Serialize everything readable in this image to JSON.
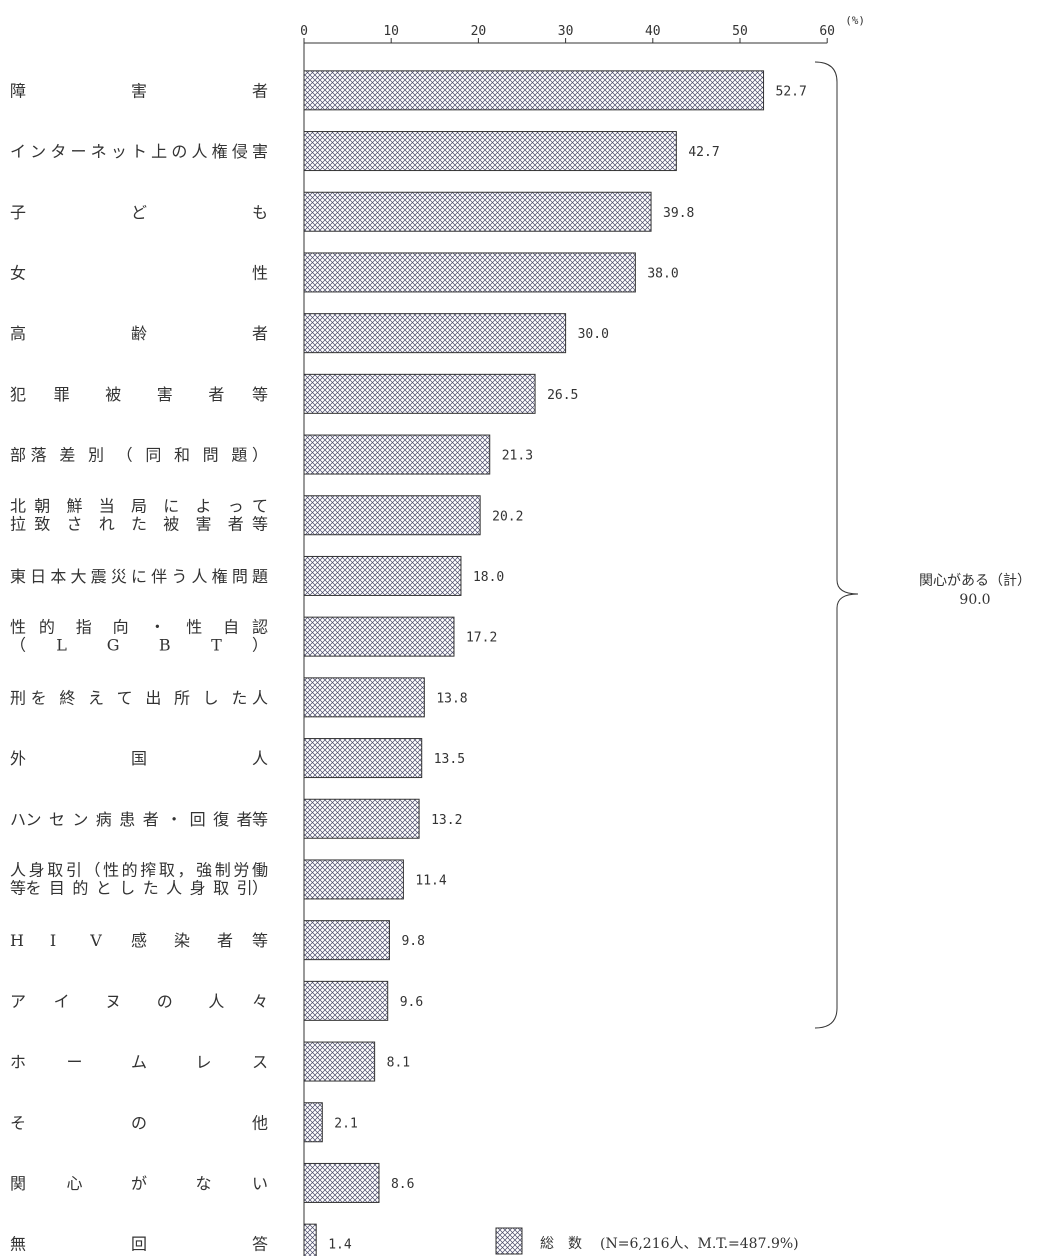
{
  "chart_data": {
    "type": "bar",
    "orientation": "horizontal",
    "unit": "(%)",
    "xlim": [
      0,
      60
    ],
    "xticks": [
      "0",
      "10",
      "20",
      "30",
      "40",
      "50",
      "60"
    ],
    "categories": [
      [
        "障",
        "害",
        "者"
      ],
      [
        "インターネット上の人権侵害"
      ],
      [
        "子",
        "ど",
        "も"
      ],
      [
        "女",
        "性"
      ],
      [
        "高",
        "齢",
        "者"
      ],
      [
        "犯",
        "罪",
        "被",
        "害",
        "者",
        "等"
      ],
      [
        "部",
        "落",
        "差",
        "別",
        "（",
        "同",
        "和",
        "問",
        "題",
        "）"
      ],
      [
        [
          "北",
          "朝",
          "鮮",
          "当",
          "局",
          "に",
          "よ",
          "っ",
          "て"
        ],
        [
          "拉",
          "致",
          "さ",
          "れ",
          "た",
          "被",
          "害",
          "者",
          "等"
        ]
      ],
      [
        "東日本大震災に伴う人権問題"
      ],
      [
        [
          "性",
          "的",
          "指",
          "向",
          "・",
          "性",
          "自",
          "認"
        ],
        [
          "（",
          "L",
          "G",
          "B",
          "T",
          "）"
        ]
      ],
      [
        "刑",
        "を",
        "終",
        "え",
        "て",
        "出",
        "所",
        "し",
        "た",
        "人"
      ],
      [
        "外",
        "国",
        "人"
      ],
      [
        "ハ",
        "ン",
        "セ",
        "ン",
        "病",
        "患",
        "者",
        "・",
        "回",
        "復",
        "者",
        "等"
      ],
      [
        [
          "人身取引（性的搾取，強制労働"
        ],
        [
          "等",
          "を",
          "目",
          "的",
          "と",
          "し",
          "た",
          "人",
          "身",
          "取",
          "引",
          "）"
        ]
      ],
      [
        "H",
        "I",
        "V",
        "感",
        "染",
        "者",
        "等"
      ],
      [
        "ア",
        "イ",
        "ヌ",
        "の",
        "人",
        "々"
      ],
      [
        "ホ",
        "ー",
        "ム",
        "レ",
        "ス"
      ],
      [
        "そ",
        "の",
        "他"
      ],
      [
        "関",
        "心",
        "が",
        "な",
        "い"
      ],
      [
        "無",
        "回",
        "答"
      ]
    ],
    "values": [
      52.7,
      42.7,
      39.8,
      38.0,
      30.0,
      26.5,
      21.3,
      20.2,
      18.0,
      17.2,
      13.8,
      13.5,
      13.2,
      11.4,
      9.8,
      9.6,
      8.1,
      2.1,
      8.6,
      1.4
    ],
    "value_labels": [
      "52.7",
      "42.7",
      "39.8",
      "38.0",
      "30.0",
      "26.5",
      "21.3",
      "20.2",
      "18.0",
      "17.2",
      "13.8",
      "13.5",
      "13.2",
      "11.4",
      "9.8",
      "9.6",
      "8.1",
      "2.1",
      "8.6",
      "1.4"
    ],
    "bracket": {
      "from_category_index": 0,
      "to_category_index": 17,
      "label_line1": "関心がある（計）",
      "label_line2": "90.0"
    },
    "legend": {
      "placement": "bottom",
      "label": "総　数",
      "note": "(N=6,216人、M.T.=487.9%)"
    },
    "bar_fill": "crosshatch",
    "colors": {
      "bar_stroke": "#333333",
      "hatch": "#4a4a6a",
      "bar_bg": "#ffffff",
      "text": "#333333"
    }
  }
}
